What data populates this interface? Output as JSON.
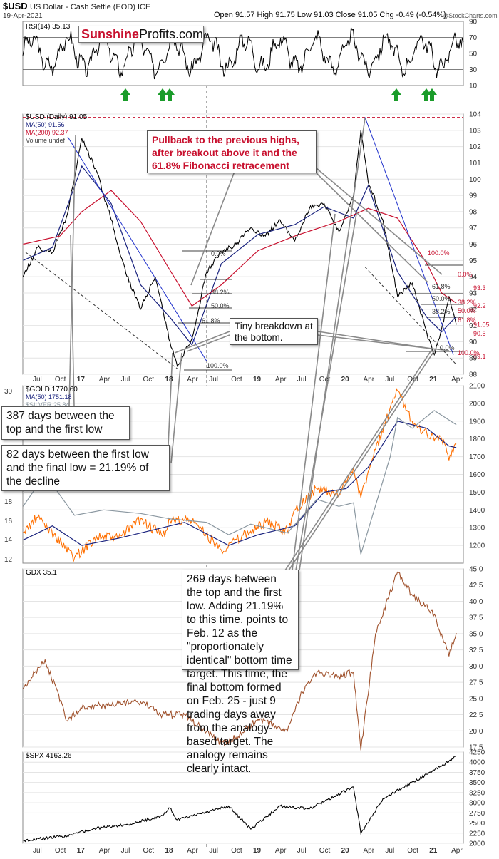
{
  "header": {
    "symbol": "$USD",
    "description": "US Dollar - Cash Settle (EOD) ICE",
    "date": "19-Apr-2021",
    "quote": "Open 91.57  High 91.75  Low 91.03  Close 91.05  Chg -0.49 (-0.54%)",
    "credit": "@StockCharts.com"
  },
  "logo": {
    "part1": "Sunshine",
    "part2": "Profits.com"
  },
  "panels": {
    "rsi": {
      "label": "RSI(14) 35.13"
    },
    "usd": {
      "label": "$USD (Daily) 91.05",
      "legend": [
        "MA(50) 91.56",
        "MA(200) 92.37",
        "Volume undef"
      ]
    },
    "gold": {
      "label": "$GOLD 1770.60",
      "legend": [
        "MA(50) 1751.18",
        "$SILVER 25.84"
      ]
    },
    "gdx": {
      "label": "GDX 35.1"
    },
    "spx": {
      "label": "$SPX 4163.26"
    }
  },
  "fib_labels_left": [
    "100.0%",
    "61.8%",
    "50.0%",
    "38.2%",
    "0.0%"
  ],
  "fib_labels_right": [
    "100.0%",
    "61.8%",
    "50.0%",
    "38.2%",
    "0.0%"
  ],
  "fib_labels_right_axis": [
    "0.0%",
    "38.2%",
    "50.0%",
    "61.8%",
    "100.0%"
  ],
  "annotations": {
    "pullback": "Pullback to the previous highs, after breakout above it and the 61.8% Fibonacci retracement",
    "tiny_breakdown": "Tiny breakdown at the bottom.",
    "days387": "387 days between the top and the first low",
    "days82": "82 days between the first low and the final low = 21.19% of the decline",
    "days269": "269 days between the top and the first low. Adding 21.19% to this time, points to Feb. 12 as the \"proportionately identical\" bottom time target. This time, the final bottom formed on Feb. 25 - just 9 trading days away from the analogy-based target. The analogy remains clearly intact."
  },
  "chart_data": [
    {
      "type": "line",
      "title": "RSI(14)",
      "ylim": [
        10,
        90
      ],
      "y_ticks": [
        10,
        30,
        50,
        70,
        90
      ],
      "reference_lines": [
        30,
        70
      ],
      "markers": [
        "up-arrow",
        "up-arrow",
        "up-arrow",
        "up-arrow",
        "up-arrow",
        "up-arrow"
      ]
    },
    {
      "type": "line",
      "title": "$USD (Daily) 91.05",
      "ylim": [
        88,
        104
      ],
      "y_ticks": [
        88,
        89,
        90,
        91,
        92,
        93,
        94,
        95,
        96,
        97,
        98,
        99,
        100,
        101,
        102,
        103,
        104
      ],
      "x_ticks": [
        "Jul",
        "Oct",
        "17",
        "Apr",
        "Jul",
        "Oct",
        "18",
        "Apr",
        "Jul",
        "Oct",
        "19",
        "Apr",
        "Jul",
        "Oct",
        "20",
        "Apr",
        "Jul",
        "Oct",
        "21",
        "Apr"
      ],
      "x_dates": [
        "2016-07",
        "2016-10",
        "2017-01",
        "2017-04",
        "2017-07",
        "2017-10",
        "2018-01",
        "2018-04",
        "2018-07",
        "2018-10",
        "2019-01",
        "2019-04",
        "2019-07",
        "2019-10",
        "2020-01",
        "2020-04",
        "2020-07",
        "2020-10",
        "2021-01",
        "2021-04"
      ],
      "price_labels": [
        "93.3",
        "92.2",
        "91.05",
        "90.5",
        "89.1"
      ],
      "series": [
        {
          "name": "$USD",
          "color": "#000000",
          "x": [
            "2016-05",
            "2016-07",
            "2016-09",
            "2016-11",
            "2017-01",
            "2017-03",
            "2017-05",
            "2017-07",
            "2017-09",
            "2017-11",
            "2018-01",
            "2018-02",
            "2018-04",
            "2018-06",
            "2018-08",
            "2018-10",
            "2018-12",
            "2019-02",
            "2019-04",
            "2019-06",
            "2019-08",
            "2019-10",
            "2019-12",
            "2020-02",
            "2020-03",
            "2020-04",
            "2020-06",
            "2020-08",
            "2020-10",
            "2020-12",
            "2021-01",
            "2021-02",
            "2021-03",
            "2021-04"
          ],
          "y": [
            94.0,
            95.8,
            95.5,
            97.8,
            102.5,
            100.5,
            97.5,
            94.2,
            92.0,
            94.0,
            90.0,
            88.5,
            90.2,
            94.3,
            95.5,
            96.0,
            97.0,
            96.5,
            97.5,
            96.2,
            98.2,
            98.5,
            96.8,
            99.0,
            103.0,
            99.8,
            97.5,
            92.8,
            93.6,
            90.5,
            89.2,
            90.8,
            92.8,
            91.05
          ]
        },
        {
          "name": "MA(50)",
          "color": "#1a237e",
          "x": [
            "2016-05",
            "2016-09",
            "2017-01",
            "2017-05",
            "2017-09",
            "2018-01",
            "2018-04",
            "2018-08",
            "2019-01",
            "2019-06",
            "2019-10",
            "2020-02",
            "2020-04",
            "2020-08",
            "2020-12",
            "2021-02",
            "2021-04"
          ],
          "y": [
            95.0,
            95.8,
            100.8,
            98.5,
            93.5,
            91.5,
            89.8,
            94.8,
            96.6,
            97.2,
            98.3,
            97.6,
            99.6,
            94.3,
            91.5,
            90.6,
            91.56
          ]
        },
        {
          "name": "MA(200)",
          "color": "#c8102e",
          "x": [
            "2016-05",
            "2016-10",
            "2017-01",
            "2017-05",
            "2017-09",
            "2018-01",
            "2018-04",
            "2018-08",
            "2019-01",
            "2019-06",
            "2019-12",
            "2020-04",
            "2020-08",
            "2020-12",
            "2021-02",
            "2021-04"
          ],
          "y": [
            96.0,
            96.5,
            98.0,
            99.3,
            97.4,
            94.4,
            92.2,
            93.5,
            95.6,
            96.5,
            97.4,
            98.2,
            97.6,
            94.8,
            93.0,
            92.37
          ]
        }
      ]
    },
    {
      "type": "line",
      "title": "$GOLD 1770.60",
      "ylim": [
        1100,
        2100
      ],
      "y_ticks": [
        1200,
        1300,
        1400,
        1500,
        1600,
        1700,
        1800,
        1900,
        2000,
        2100
      ],
      "left_y_ticks": [
        12,
        14,
        16,
        18,
        30
      ],
      "series": [
        {
          "name": "$GOLD",
          "color": "#ff6f00",
          "x": [
            "2016-05",
            "2016-07",
            "2016-12",
            "2017-03",
            "2017-06",
            "2017-09",
            "2017-12",
            "2018-01",
            "2018-04",
            "2018-08",
            "2018-12",
            "2019-02",
            "2019-05",
            "2019-06",
            "2019-09",
            "2019-12",
            "2020-02",
            "2020-03",
            "2020-05",
            "2020-08",
            "2020-10",
            "2020-12",
            "2021-02",
            "2021-03",
            "2021-04"
          ],
          "y": [
            1270,
            1360,
            1130,
            1250,
            1240,
            1350,
            1250,
            1340,
            1340,
            1175,
            1280,
            1330,
            1280,
            1400,
            1520,
            1480,
            1640,
            1470,
            1740,
            2070,
            1900,
            1830,
            1800,
            1680,
            1770
          ]
        },
        {
          "name": "MA(50)",
          "color": "#1a237e",
          "x": [
            "2016-05",
            "2016-09",
            "2017-01",
            "2017-06",
            "2017-10",
            "2018-03",
            "2018-09",
            "2019-01",
            "2019-06",
            "2019-10",
            "2020-01",
            "2020-04",
            "2020-08",
            "2020-12",
            "2021-03",
            "2021-04"
          ],
          "y": [
            1230,
            1310,
            1200,
            1240,
            1280,
            1330,
            1200,
            1260,
            1310,
            1500,
            1520,
            1640,
            1900,
            1860,
            1760,
            1751
          ]
        },
        {
          "name": "$SILVER",
          "color": "#8a97a0",
          "x": [
            "2016-05",
            "2016-08",
            "2016-12",
            "2017-04",
            "2017-09",
            "2018-01",
            "2018-06",
            "2018-09",
            "2018-12",
            "2019-05",
            "2019-09",
            "2019-12",
            "2020-02",
            "2020-03",
            "2020-07",
            "2020-08",
            "2020-10",
            "2021-01",
            "2021-04"
          ],
          "y": [
            1420,
            1600,
            1370,
            1400,
            1380,
            1350,
            1330,
            1260,
            1320,
            1270,
            1460,
            1420,
            1440,
            1150,
            1700,
            1920,
            1860,
            1960,
            1880
          ]
        }
      ]
    },
    {
      "type": "line",
      "title": "GDX 35.1",
      "ylim": [
        17.5,
        45
      ],
      "y_ticks": [
        17.5,
        20.0,
        22.5,
        25.0,
        27.5,
        30.0,
        32.5,
        35.0,
        37.5,
        40.0,
        42.5,
        45.0
      ],
      "series": [
        {
          "name": "GDX",
          "color": "#a0522d",
          "x": [
            "2016-05",
            "2016-08",
            "2016-11",
            "2017-01",
            "2017-04",
            "2017-09",
            "2017-12",
            "2018-03",
            "2018-08",
            "2018-10",
            "2019-01",
            "2019-05",
            "2019-07",
            "2019-09",
            "2019-12",
            "2020-02",
            "2020-03",
            "2020-05",
            "2020-08",
            "2020-10",
            "2021-01",
            "2021-03",
            "2021-04"
          ],
          "y": [
            26.5,
            31.0,
            21.5,
            23.5,
            24.0,
            24.5,
            22.5,
            22.5,
            18.0,
            19.0,
            21.8,
            20.0,
            26.0,
            29.0,
            28.5,
            29.0,
            17.0,
            35.0,
            44.5,
            41.0,
            38.0,
            31.5,
            35.1
          ]
        }
      ]
    },
    {
      "type": "line",
      "title": "$SPX 4163.26",
      "ylim": [
        2000,
        4250
      ],
      "y_ticks": [
        2000,
        2250,
        2500,
        2750,
        3000,
        3250,
        3500,
        3750,
        4000,
        4250
      ],
      "series": [
        {
          "name": "$SPX",
          "color": "#000000",
          "x": [
            "2016-05",
            "2016-11",
            "2017-03",
            "2017-07",
            "2017-12",
            "2018-01",
            "2018-02",
            "2018-09",
            "2018-12",
            "2019-04",
            "2019-08",
            "2020-01",
            "2020-02",
            "2020-03",
            "2020-06",
            "2020-09",
            "2020-12",
            "2021-02",
            "2021-04"
          ],
          "y": [
            2070,
            2180,
            2370,
            2460,
            2680,
            2870,
            2580,
            2920,
            2350,
            2920,
            2850,
            3300,
            3390,
            2240,
            3100,
            3400,
            3700,
            3900,
            4163
          ]
        }
      ]
    }
  ]
}
